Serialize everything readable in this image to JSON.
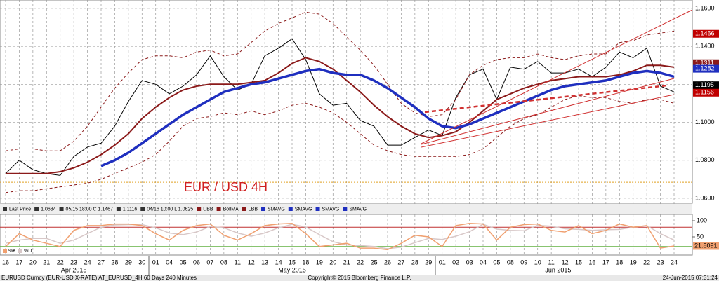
{
  "chart_data": {
    "type": "line",
    "annotation": "EUR / USD 4H",
    "categories": [
      "16",
      "17",
      "20",
      "21",
      "22",
      "23",
      "24",
      "27",
      "28",
      "29",
      "30",
      "01",
      "04",
      "05",
      "06",
      "07",
      "08",
      "11",
      "12",
      "13",
      "14",
      "15",
      "18",
      "19",
      "20",
      "21",
      "22",
      "25",
      "26",
      "27",
      "28",
      "29",
      "01",
      "02",
      "03",
      "04",
      "05",
      "08",
      "09",
      "10",
      "11",
      "12",
      "15",
      "16",
      "17",
      "18",
      "19",
      "22",
      "23",
      "24"
    ],
    "months": [
      {
        "label": "Apr 2015",
        "start": 0
      },
      {
        "label": "May 2015",
        "start": 11
      },
      {
        "label": "Jun 2015",
        "start": 32
      }
    ],
    "ylim": [
      1.0574,
      1.1644
    ],
    "yticks": [
      {
        "value": 1.06,
        "label": "1.0600"
      },
      {
        "value": 1.08,
        "label": "1.0800"
      },
      {
        "value": 1.1,
        "label": "1.1000"
      },
      {
        "value": 1.12,
        "label": "1.1200"
      },
      {
        "value": 1.14,
        "label": "1.1400"
      },
      {
        "value": 1.16,
        "label": "1.1600"
      }
    ],
    "grid": true,
    "reference_line": {
      "value": 1.0684,
      "color": "#e0a020"
    },
    "series": [
      {
        "name": "Last Price",
        "color": "#000000",
        "width": 1,
        "dash": false,
        "values": [
          1.073,
          1.08,
          1.075,
          1.073,
          1.072,
          1.082,
          1.087,
          1.089,
          1.098,
          1.111,
          1.122,
          1.12,
          1.115,
          1.119,
          1.125,
          1.135,
          1.124,
          1.117,
          1.12,
          1.135,
          1.139,
          1.144,
          1.133,
          1.115,
          1.109,
          1.11,
          1.101,
          1.098,
          1.088,
          1.088,
          1.092,
          1.096,
          1.093,
          1.113,
          1.125,
          1.128,
          1.112,
          1.129,
          1.128,
          1.132,
          1.126,
          1.126,
          1.128,
          1.124,
          1.129,
          1.137,
          1.134,
          1.139,
          1.119,
          1.116
        ]
      },
      {
        "name": "UBB",
        "color": "#8b1a1a",
        "width": 1,
        "dash": true,
        "values": [
          1.085,
          1.086,
          1.086,
          1.085,
          1.085,
          1.09,
          1.098,
          1.108,
          1.118,
          1.126,
          1.133,
          1.135,
          1.135,
          1.134,
          1.137,
          1.138,
          1.135,
          1.136,
          1.142,
          1.148,
          1.152,
          1.155,
          1.158,
          1.157,
          1.152,
          1.145,
          1.138,
          1.13,
          1.12,
          1.11,
          1.105,
          1.103,
          1.104,
          1.112,
          1.125,
          1.13,
          1.133,
          1.134,
          1.134,
          1.136,
          1.134,
          1.133,
          1.135,
          1.136,
          1.136,
          1.142,
          1.143,
          1.146,
          1.147,
          1.148
        ]
      },
      {
        "name": "BollMA",
        "color": "#8b1a1a",
        "width": 2,
        "dash": false,
        "values": [
          1.073,
          1.073,
          1.073,
          1.073,
          1.074,
          1.076,
          1.079,
          1.083,
          1.088,
          1.094,
          1.102,
          1.108,
          1.113,
          1.117,
          1.119,
          1.12,
          1.12,
          1.12,
          1.121,
          1.122,
          1.126,
          1.131,
          1.134,
          1.132,
          1.128,
          1.122,
          1.116,
          1.109,
          1.103,
          1.098,
          1.094,
          1.092,
          1.093,
          1.095,
          1.1,
          1.106,
          1.112,
          1.115,
          1.118,
          1.12,
          1.122,
          1.123,
          1.124,
          1.124,
          1.124,
          1.125,
          1.127,
          1.13,
          1.13,
          1.129
        ]
      },
      {
        "name": "LBB",
        "color": "#8b1a1a",
        "width": 1,
        "dash": true,
        "values": [
          1.063,
          1.064,
          1.064,
          1.065,
          1.066,
          1.067,
          1.068,
          1.07,
          1.073,
          1.076,
          1.079,
          1.083,
          1.09,
          1.098,
          1.102,
          1.103,
          1.105,
          1.104,
          1.106,
          1.104,
          1.106,
          1.109,
          1.11,
          1.108,
          1.105,
          1.1,
          1.094,
          1.088,
          1.085,
          1.083,
          1.082,
          1.082,
          1.082,
          1.082,
          1.083,
          1.086,
          1.092,
          1.098,
          1.102,
          1.104,
          1.108,
          1.112,
          1.114,
          1.113,
          1.113,
          1.111,
          1.11,
          1.112,
          1.112,
          1.11
        ]
      },
      {
        "name": "SMAVG",
        "color": "#1f2fbf",
        "width": 3.5,
        "dash": false,
        "values": [
          null,
          null,
          null,
          null,
          null,
          null,
          null,
          1.077,
          1.08,
          1.084,
          1.089,
          1.094,
          1.099,
          1.104,
          1.108,
          1.112,
          1.116,
          1.118,
          1.12,
          1.121,
          1.123,
          1.125,
          1.127,
          1.128,
          1.126,
          1.125,
          1.125,
          1.122,
          1.118,
          1.113,
          1.108,
          1.102,
          1.098,
          1.097,
          1.099,
          1.102,
          1.105,
          1.108,
          1.111,
          1.114,
          1.117,
          1.119,
          1.12,
          1.121,
          1.122,
          1.124,
          1.126,
          1.127,
          1.126,
          1.124
        ]
      }
    ],
    "legend": [
      "Last Price",
      "1.0684",
      "05/15 18:00 C 1.1467",
      "1.1116",
      "04/16 10:00 L 1.0625",
      "UBB",
      "BollMA",
      "LBB",
      "SMAVG",
      "SMAVG",
      "SMAVG",
      "SMAVG"
    ],
    "price_labels": [
      {
        "value": 1.1466,
        "color": "#c00000"
      },
      {
        "value": 1.1311,
        "color": "#8b1a1a"
      },
      {
        "value": 1.1282,
        "color": "#1f2fbf"
      },
      {
        "value": 1.1195,
        "color": "#000000"
      },
      {
        "value": 1.1156,
        "color": "#c00000"
      }
    ],
    "oscillator": {
      "ylim": [
        -6.5,
        119.6
      ],
      "yticks": [
        50,
        100
      ],
      "reference_lines": [
        {
          "value": 80,
          "color": "#c03030"
        },
        {
          "value": 20,
          "color": "#60b040"
        }
      ],
      "series": [
        {
          "name": "%K",
          "color": "#f0a070",
          "values": [
            20,
            60,
            40,
            30,
            20,
            70,
            85,
            85,
            90,
            90,
            85,
            60,
            40,
            70,
            85,
            90,
            55,
            40,
            60,
            85,
            90,
            92,
            60,
            20,
            25,
            30,
            15,
            15,
            10,
            30,
            55,
            50,
            20,
            85,
            92,
            90,
            40,
            80,
            88,
            90,
            70,
            65,
            85,
            60,
            70,
            90,
            80,
            85,
            15,
            21.8091
          ]
        },
        {
          "name": "%D",
          "color": "#d8c8c8",
          "values": [
            30,
            40,
            45,
            45,
            30,
            40,
            60,
            80,
            87,
            88,
            88,
            78,
            62,
            57,
            65,
            82,
            78,
            62,
            52,
            62,
            78,
            89,
            81,
            57,
            35,
            25,
            23,
            20,
            13,
            18,
            32,
            45,
            42,
            52,
            66,
            89,
            74,
            70,
            69,
            86,
            83,
            75,
            73,
            70,
            72,
            73,
            80,
            85,
            60,
            40
          ]
        }
      ],
      "last_value": 21.8091
    },
    "footer": {
      "left": "EURUSD Curncy (EUR-USD X-RATE) AT_EURUSD_4H 60 Days 240 Minutes",
      "center": "Copyright© 2015 Bloomberg Finance L.P.",
      "right": "24-Jun-2015 07:31:24"
    }
  }
}
